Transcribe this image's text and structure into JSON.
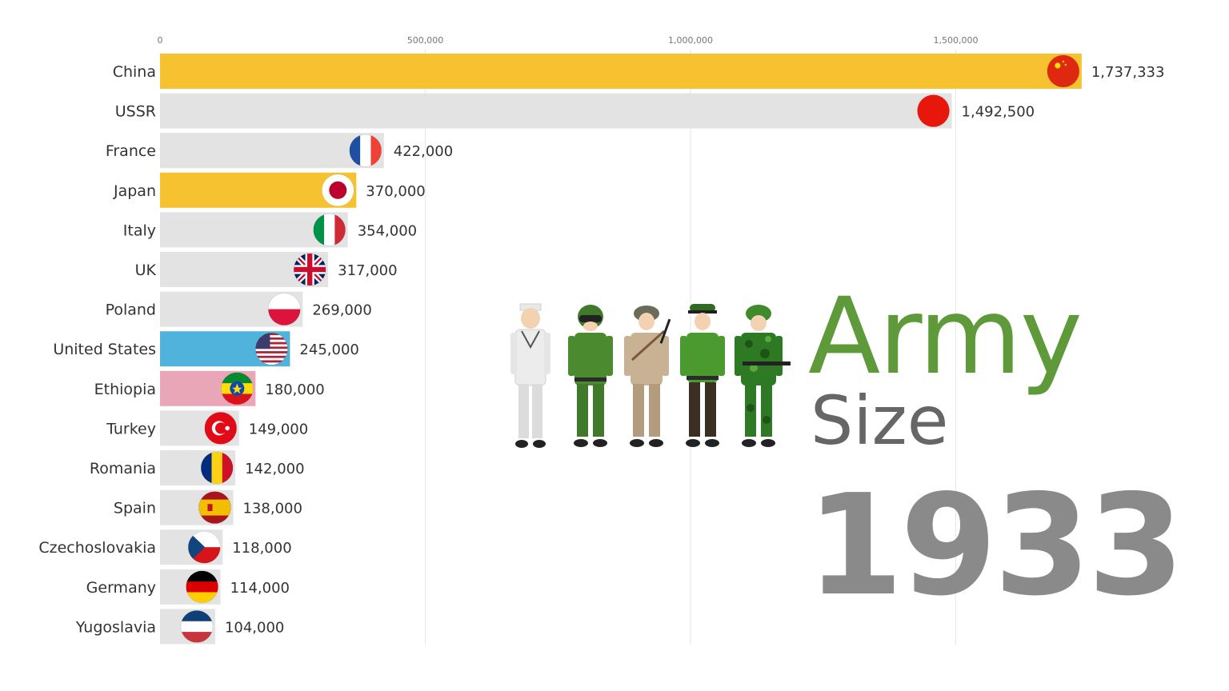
{
  "title": {
    "line1": "Army",
    "line2": "Size",
    "year": "1933"
  },
  "chart_data": {
    "type": "bar",
    "orientation": "horizontal",
    "title": "",
    "xlabel": "",
    "ylabel": "",
    "xlim": [
      0,
      2000000
    ],
    "x_ticks": [
      0,
      500000,
      1000000,
      1500000
    ],
    "x_tick_labels": [
      "0",
      "500,000",
      "1,000,000",
      "1,500,000"
    ],
    "grid": "vertical",
    "categories": [
      "China",
      "USSR",
      "France",
      "Japan",
      "Italy",
      "UK",
      "Poland",
      "United States",
      "Ethiopia",
      "Turkey",
      "Romania",
      "Spain",
      "Czechoslovakia",
      "Germany",
      "Yugoslavia"
    ],
    "values": [
      1737333,
      1492500,
      422000,
      370000,
      354000,
      317000,
      269000,
      245000,
      180000,
      149000,
      142000,
      138000,
      118000,
      114000,
      104000
    ],
    "value_labels": [
      "1,737,333",
      "1,492,500",
      "422,000",
      "370,000",
      "354,000",
      "317,000",
      "269,000",
      "245,000",
      "180,000",
      "149,000",
      "142,000",
      "138,000",
      "118,000",
      "114,000",
      "104,000"
    ],
    "bar_colors": [
      "#f7c22f",
      "#e3e3e3",
      "#e3e3e3",
      "#f7c22f",
      "#e3e3e3",
      "#e3e3e3",
      "#e3e3e3",
      "#4fb3db",
      "#e9a6b8",
      "#e3e3e3",
      "#e3e3e3",
      "#e3e3e3",
      "#e3e3e3",
      "#e3e3e3",
      "#e3e3e3"
    ],
    "flag_icons": [
      "china-flag-icon",
      "ussr-flag-icon",
      "france-flag-icon",
      "japan-flag-icon",
      "italy-flag-icon",
      "uk-flag-icon",
      "poland-flag-icon",
      "usa-flag-icon",
      "ethiopia-flag-icon",
      "turkey-flag-icon",
      "romania-flag-icon",
      "spain-flag-icon",
      "czechoslovakia-flag-icon",
      "germany-flag-icon",
      "yugoslavia-flag-icon"
    ]
  },
  "illustration": {
    "icon": "soldiers-illustration",
    "figures": [
      "sailor-icon",
      "pilot-icon",
      "infantry-icon",
      "officer-icon",
      "camouflage-soldier-icon"
    ]
  }
}
